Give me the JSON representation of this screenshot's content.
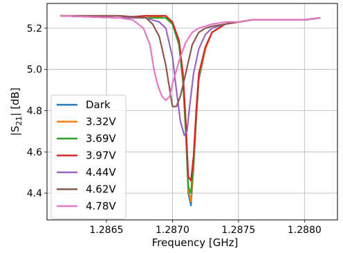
{
  "chart_data": {
    "type": "line",
    "xlabel": "Frequency [GHz]",
    "ylabel": "|S21| [dB]",
    "ylabel_main": "|S",
    "ylabel_sub": "21",
    "ylabel_tail": "| [dB]",
    "xlim": [
      1.28605,
      1.28825
    ],
    "ylim": [
      4.27,
      5.32
    ],
    "xticks": [
      1.2865,
      1.287,
      1.2875,
      1.288
    ],
    "xtick_labels": [
      "1.2865",
      "1.2870",
      "1.2875",
      "1.2880"
    ],
    "yticks": [
      4.4,
      4.6,
      4.8,
      5.0,
      5.2
    ],
    "ytick_labels": [
      "4.4",
      "4.6",
      "4.8",
      "5.0",
      "5.2"
    ],
    "grid": true,
    "legend_position": "lower-left",
    "series": [
      {
        "name": "Dark",
        "color": "#1f77b4",
        "x": [
          1.28615,
          1.2866,
          1.2868,
          1.28695,
          1.287,
          1.28705,
          1.28708,
          1.2871,
          1.28712,
          1.28714,
          1.28716,
          1.28718,
          1.2872,
          1.28725,
          1.2873,
          1.2874,
          1.2875,
          1.2876,
          1.2878,
          1.288,
          1.28812
        ],
        "y": [
          5.26,
          5.25,
          5.25,
          5.25,
          5.22,
          5.12,
          4.95,
          4.72,
          4.4,
          4.34,
          4.52,
          4.75,
          4.95,
          5.1,
          5.18,
          5.22,
          5.23,
          5.24,
          5.24,
          5.24,
          5.25
        ]
      },
      {
        "name": "3.32V",
        "color": "#ff7f0e",
        "x": [
          1.28615,
          1.2866,
          1.2868,
          1.28695,
          1.287,
          1.28705,
          1.28708,
          1.2871,
          1.28712,
          1.28714,
          1.28716,
          1.28718,
          1.2872,
          1.28725,
          1.2873,
          1.2874,
          1.2875,
          1.2876,
          1.2878,
          1.288,
          1.28812
        ],
        "y": [
          5.26,
          5.25,
          5.26,
          5.25,
          5.22,
          5.13,
          4.96,
          4.73,
          4.42,
          4.36,
          4.53,
          4.76,
          4.96,
          5.1,
          5.18,
          5.22,
          5.23,
          5.24,
          5.24,
          5.24,
          5.25
        ]
      },
      {
        "name": "3.69V",
        "color": "#2ca02c",
        "x": [
          1.28615,
          1.2866,
          1.2868,
          1.28695,
          1.287,
          1.28705,
          1.28708,
          1.2871,
          1.28712,
          1.28714,
          1.28716,
          1.28718,
          1.2872,
          1.28725,
          1.2873,
          1.2874,
          1.2875,
          1.2876,
          1.2878,
          1.288,
          1.28812
        ],
        "y": [
          5.26,
          5.25,
          5.25,
          5.25,
          5.22,
          5.12,
          4.94,
          4.7,
          4.43,
          4.4,
          4.55,
          4.78,
          4.97,
          5.11,
          5.18,
          5.22,
          5.23,
          5.24,
          5.24,
          5.24,
          5.25
        ]
      },
      {
        "name": "3.97V",
        "color": "#d62728",
        "x": [
          1.28615,
          1.2866,
          1.2868,
          1.28695,
          1.287,
          1.28705,
          1.28708,
          1.2871,
          1.28712,
          1.28714,
          1.28716,
          1.28718,
          1.2872,
          1.28725,
          1.2873,
          1.2874,
          1.2875,
          1.2876,
          1.2878,
          1.288,
          1.28812
        ],
        "y": [
          5.26,
          5.25,
          5.26,
          5.26,
          5.23,
          5.14,
          4.98,
          4.76,
          4.48,
          4.46,
          4.58,
          4.8,
          4.98,
          5.11,
          5.18,
          5.22,
          5.23,
          5.24,
          5.24,
          5.24,
          5.25
        ]
      },
      {
        "name": "4.44V",
        "color": "#9467bd",
        "x": [
          1.28615,
          1.2866,
          1.2868,
          1.2869,
          1.28695,
          1.287,
          1.28703,
          1.28706,
          1.28709,
          1.28711,
          1.28713,
          1.28716,
          1.2872,
          1.28725,
          1.2873,
          1.2874,
          1.2875,
          1.2876,
          1.2878,
          1.288,
          1.28812
        ],
        "y": [
          5.26,
          5.25,
          5.25,
          5.23,
          5.2,
          5.06,
          4.9,
          4.75,
          4.68,
          4.7,
          4.82,
          4.98,
          5.1,
          5.17,
          5.2,
          5.22,
          5.23,
          5.24,
          5.24,
          5.24,
          5.25
        ]
      },
      {
        "name": "4.62V",
        "color": "#8c564b",
        "x": [
          1.28615,
          1.2866,
          1.2868,
          1.28685,
          1.2869,
          1.28695,
          1.28698,
          1.287,
          1.28703,
          1.28706,
          1.2871,
          1.28715,
          1.2872,
          1.28725,
          1.2873,
          1.2874,
          1.2875,
          1.2876,
          1.2878,
          1.288,
          1.28812
        ],
        "y": [
          5.26,
          5.26,
          5.25,
          5.22,
          5.16,
          5.02,
          4.9,
          4.82,
          4.82,
          4.87,
          4.98,
          5.12,
          5.18,
          5.2,
          5.21,
          5.22,
          5.23,
          5.24,
          5.24,
          5.24,
          5.25
        ]
      },
      {
        "name": "4.78V",
        "color": "#e377c2",
        "x": [
          1.28615,
          1.2866,
          1.2867,
          1.28678,
          1.28683,
          1.28686,
          1.28689,
          1.28692,
          1.28695,
          1.28698,
          1.287,
          1.28705,
          1.2871,
          1.28715,
          1.2872,
          1.2873,
          1.2874,
          1.2875,
          1.2876,
          1.2878,
          1.288,
          1.28812
        ],
        "y": [
          5.26,
          5.25,
          5.24,
          5.2,
          5.12,
          5.0,
          4.92,
          4.87,
          4.85,
          4.87,
          4.93,
          5.04,
          5.13,
          5.18,
          5.2,
          5.22,
          5.23,
          5.23,
          5.24,
          5.24,
          5.24,
          5.25
        ]
      }
    ]
  }
}
